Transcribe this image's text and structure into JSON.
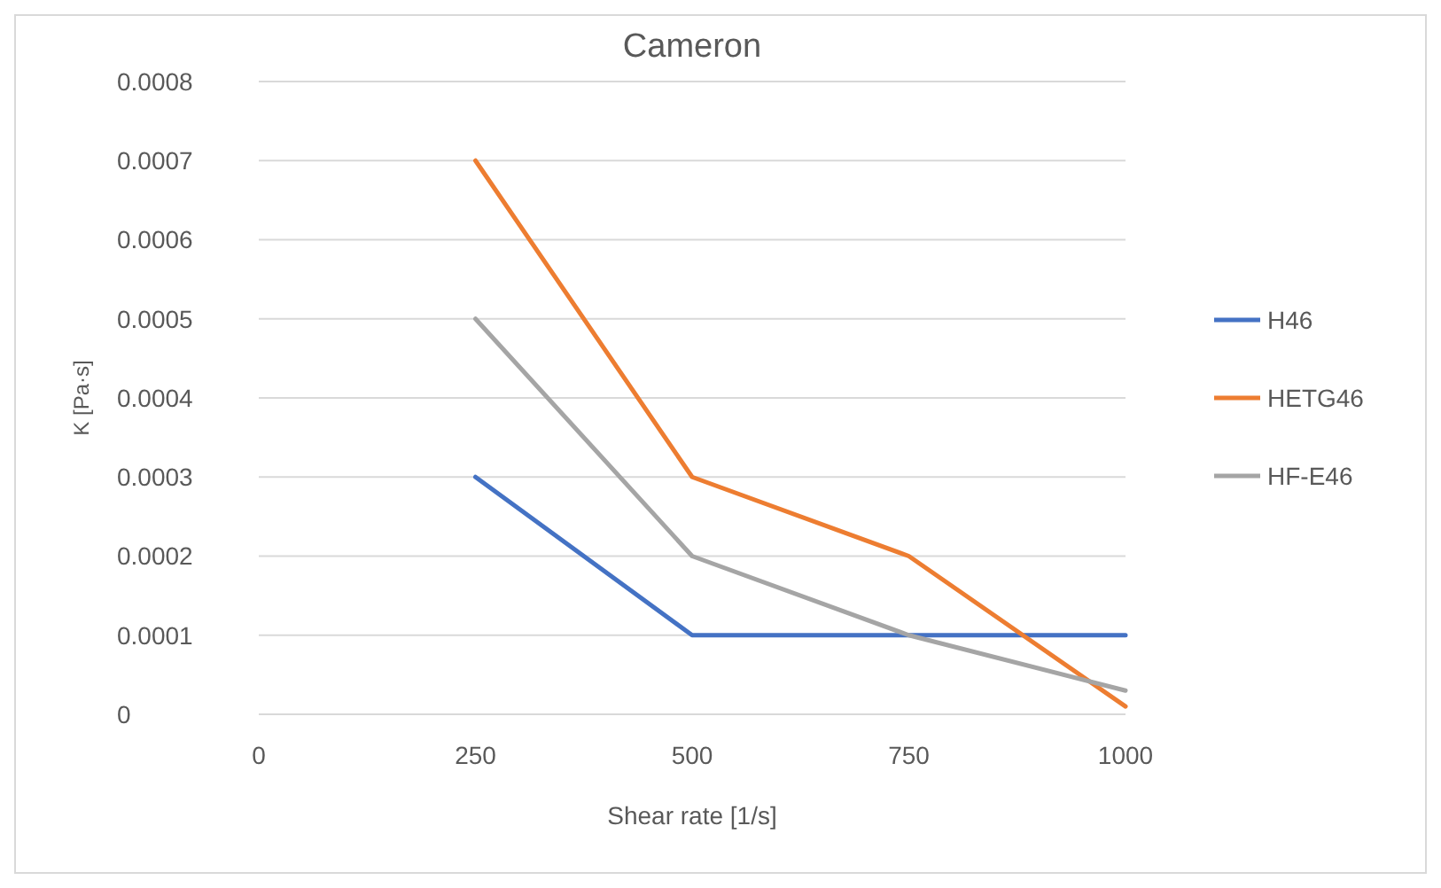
{
  "chart_data": {
    "type": "line",
    "title": "Cameron",
    "xlabel": "Shear rate [1/s]",
    "ylabel": "K [Pa·s]",
    "x": [
      250,
      500,
      750,
      1000
    ],
    "series": [
      {
        "name": "H46",
        "color": "#4472c4",
        "values": [
          0.0003,
          0.0001,
          0.0001,
          0.0001
        ]
      },
      {
        "name": "HETG46",
        "color": "#ed7d31",
        "values": [
          0.0007,
          0.0003,
          0.0002,
          1e-05
        ]
      },
      {
        "name": "HF-E46",
        "color": "#a5a5a5",
        "values": [
          0.0005,
          0.0002,
          0.0001,
          3e-05
        ]
      }
    ],
    "xlim": [
      0,
      1000
    ],
    "xticks": [
      0,
      250,
      500,
      750,
      1000
    ],
    "ylim": [
      0,
      0.0008
    ],
    "yticks": [
      0,
      0.0001,
      0.0002,
      0.0003,
      0.0004,
      0.0005,
      0.0006,
      0.0007,
      0.0008
    ],
    "grid": "y",
    "legend": "right",
    "marker": "none",
    "line_style": "solid"
  }
}
